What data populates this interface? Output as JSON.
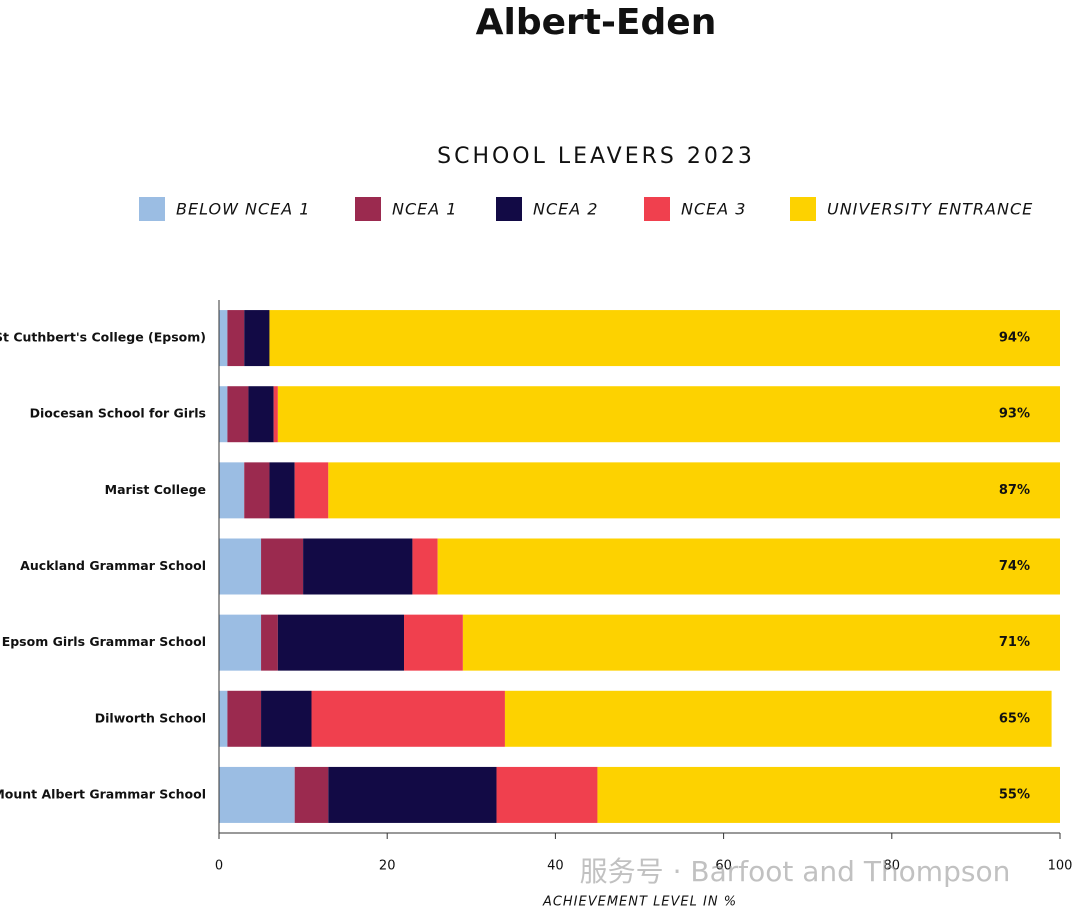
{
  "chart_data": {
    "type": "stacked-bar-horizontal",
    "title": "Albert-Eden",
    "subtitle": "SCHOOL LEAVERS 2023",
    "x_label": "ACHIEVEMENT LEVEL IN %",
    "watermark": "服务号 · Barfoot and Thompson",
    "categories": [
      "St Cuthbert's College (Epsom)",
      "Diocesan School for Girls",
      "Marist College",
      "Auckland Grammar School",
      "Epsom Girls Grammar School",
      "Dilworth School",
      "Mount Albert Grammar School"
    ],
    "series": [
      {
        "name": "BELOW NCEA 1",
        "color": "#9bbde3",
        "values": [
          1,
          1,
          3,
          5,
          5,
          1,
          9
        ]
      },
      {
        "name": "NCEA 1",
        "color": "#9b2a4f",
        "values": [
          2,
          2.5,
          3,
          5,
          2,
          4,
          4
        ]
      },
      {
        "name": "NCEA 2",
        "color": "#120a45",
        "values": [
          3,
          3,
          3,
          13,
          15,
          6,
          20
        ]
      },
      {
        "name": "NCEA 3",
        "color": "#f0404e",
        "values": [
          0,
          0.5,
          4,
          3,
          7,
          23,
          12
        ]
      },
      {
        "name": "UNIVERSITY ENTRANCE",
        "color": "#fdd200",
        "values": [
          94,
          93,
          87,
          74,
          71,
          65,
          55
        ],
        "value_labels": [
          "94%",
          "93%",
          "87%",
          "74%",
          "71%",
          "65%",
          "55%"
        ]
      }
    ],
    "xlim": [
      0,
      100
    ],
    "xticks": [
      0,
      20,
      40,
      60,
      80,
      100
    ]
  }
}
